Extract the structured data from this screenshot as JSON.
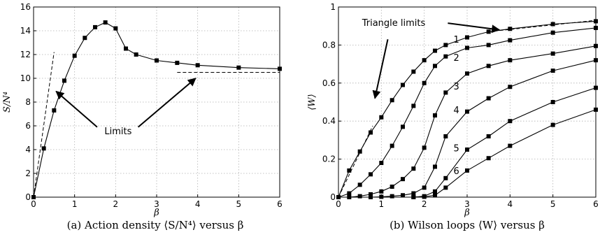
{
  "chart_data": [
    {
      "type": "line",
      "caption": "(a) Action density ⟨S/N⁴⟩ versus β",
      "xlabel": "β",
      "ylabel": "S/N⁴",
      "xlim": [
        0,
        6
      ],
      "ylim": [
        0,
        16
      ],
      "xticks": [
        0,
        1,
        2,
        3,
        4,
        5,
        6
      ],
      "yticks": [
        0,
        2,
        4,
        6,
        8,
        10,
        12,
        14,
        16
      ],
      "grid": true,
      "series": [
        {
          "x": [
            0,
            0.25,
            0.5,
            0.75,
            1.0,
            1.25,
            1.5,
            1.75,
            2.0,
            2.25,
            2.5,
            3.0,
            3.5,
            4.0,
            5.0,
            6.0
          ],
          "y": [
            0.0,
            4.1,
            7.3,
            9.8,
            11.9,
            13.4,
            14.3,
            14.7,
            14.2,
            12.5,
            12.0,
            11.5,
            11.3,
            11.1,
            10.9,
            10.8
          ]
        }
      ],
      "limits": [
        {
          "x": [
            0,
            0.5
          ],
          "y": [
            0,
            12.2
          ]
        },
        {
          "x": [
            3.5,
            6.0
          ],
          "y": [
            10.5,
            10.5
          ]
        }
      ],
      "annotations": [
        {
          "text": "Limits"
        }
      ]
    },
    {
      "type": "line",
      "caption": "(b) Wilson loops ⟨W⟩ versus β",
      "xlabel": "β",
      "ylabel": "⟨W⟩",
      "xlim": [
        0,
        6
      ],
      "ylim": [
        0,
        1.0
      ],
      "xticks": [
        0,
        1,
        2,
        3,
        4,
        5,
        6
      ],
      "yticks": [
        0,
        0.2,
        0.4,
        0.6,
        0.8,
        1.0
      ],
      "grid": true,
      "series": [
        {
          "name": "1",
          "x": [
            0,
            0.25,
            0.5,
            0.75,
            1.0,
            1.25,
            1.5,
            1.75,
            2.0,
            2.25,
            2.5,
            3.0,
            3.5,
            4.0,
            5.0,
            6.0
          ],
          "y": [
            0,
            0.14,
            0.24,
            0.34,
            0.42,
            0.51,
            0.59,
            0.66,
            0.72,
            0.77,
            0.8,
            0.84,
            0.87,
            0.885,
            0.91,
            0.925
          ]
        },
        {
          "name": "2",
          "x": [
            0,
            0.25,
            0.5,
            0.75,
            1.0,
            1.25,
            1.5,
            1.75,
            2.0,
            2.25,
            2.5,
            3.0,
            3.5,
            4.0,
            5.0,
            6.0
          ],
          "y": [
            0,
            0.02,
            0.065,
            0.12,
            0.18,
            0.27,
            0.37,
            0.48,
            0.6,
            0.69,
            0.74,
            0.785,
            0.8,
            0.825,
            0.865,
            0.89
          ]
        },
        {
          "name": "3",
          "x": [
            0.25,
            0.5,
            0.75,
            1.0,
            1.25,
            1.5,
            1.75,
            2.0,
            2.25,
            2.5,
            3.0,
            3.5,
            4.0,
            5.0,
            6.0
          ],
          "y": [
            0,
            0.005,
            0.015,
            0.03,
            0.055,
            0.095,
            0.15,
            0.26,
            0.43,
            0.55,
            0.65,
            0.69,
            0.72,
            0.755,
            0.795
          ]
        },
        {
          "name": "4",
          "x": [
            0.75,
            1.0,
            1.25,
            1.5,
            1.75,
            2.0,
            2.25,
            2.5,
            3.0,
            3.5,
            4.0,
            5.0,
            6.0
          ],
          "y": [
            0,
            0.002,
            0.005,
            0.01,
            0.02,
            0.05,
            0.16,
            0.32,
            0.45,
            0.52,
            0.58,
            0.665,
            0.72
          ]
        },
        {
          "name": "5",
          "x": [
            1.75,
            2.0,
            2.25,
            2.5,
            3.0,
            3.5,
            4.0,
            5.0,
            6.0
          ],
          "y": [
            0,
            0.005,
            0.03,
            0.1,
            0.25,
            0.32,
            0.4,
            0.5,
            0.575
          ]
        },
        {
          "name": "6",
          "x": [
            1.75,
            2.0,
            2.25,
            2.5,
            3.0,
            3.5,
            4.0,
            5.0,
            6.0
          ],
          "y": [
            0,
            0.002,
            0.01,
            0.05,
            0.14,
            0.205,
            0.27,
            0.38,
            0.46
          ]
        }
      ],
      "limits": [
        {
          "x": [
            0,
            0.8
          ],
          "y": [
            0,
            0.375
          ]
        },
        {
          "x": [
            3.5,
            6.0
          ],
          "y": [
            0.87,
            0.93
          ]
        }
      ],
      "annotations": [
        {
          "text": "Triangle limits"
        }
      ]
    }
  ]
}
